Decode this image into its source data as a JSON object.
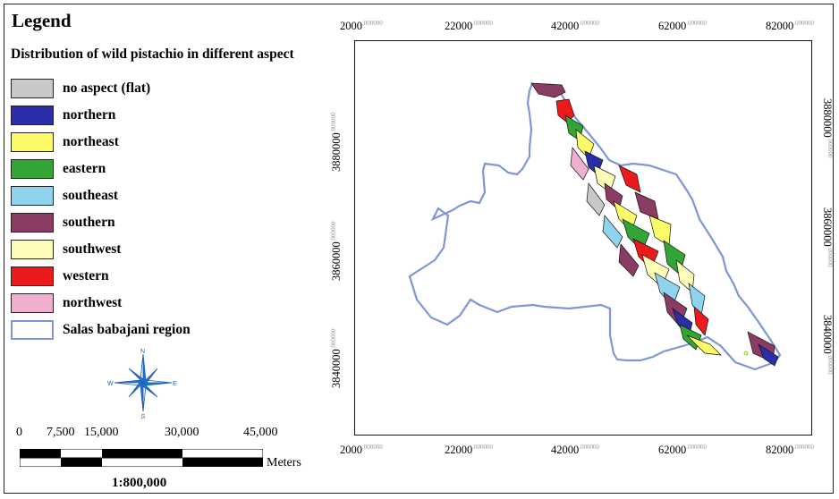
{
  "legend": {
    "title": "Legend",
    "subtitle": "Distribution of wild pistachio in different aspect",
    "items": [
      {
        "label": "no aspect (flat)",
        "color": "#c8c8c8"
      },
      {
        "label": "northern",
        "color": "#2b2ea8"
      },
      {
        "label": "northeast",
        "color": "#fbfb6a"
      },
      {
        "label": "eastern",
        "color": "#33a535"
      },
      {
        "label": "southeast",
        "color": "#8fd3ee"
      },
      {
        "label": "southern",
        "color": "#8a3c63"
      },
      {
        "label": "southwest",
        "color": "#fdfdb8"
      },
      {
        "label": "western",
        "color": "#ec1a1a"
      },
      {
        "label": "northwest",
        "color": "#f0aed0"
      },
      {
        "label": "Salas babajani region",
        "color": "#7f96d6"
      }
    ]
  },
  "compass": {
    "n": "N",
    "s": "S",
    "e": "E",
    "w": "W"
  },
  "scale": {
    "ticks": [
      "0",
      "7,500",
      "15,000",
      "30,000",
      "45,000"
    ],
    "units": "Meters",
    "ratio": "1:800,000"
  },
  "map": {
    "x_labels": [
      "2000",
      "22000",
      "42000",
      "62000",
      "82000"
    ],
    "x_suffix": ".000000",
    "y_labels": [
      "3880000",
      "3860000",
      "3840000"
    ],
    "y_suffix": ".000000",
    "boundary_color": "#7f96d6"
  }
}
